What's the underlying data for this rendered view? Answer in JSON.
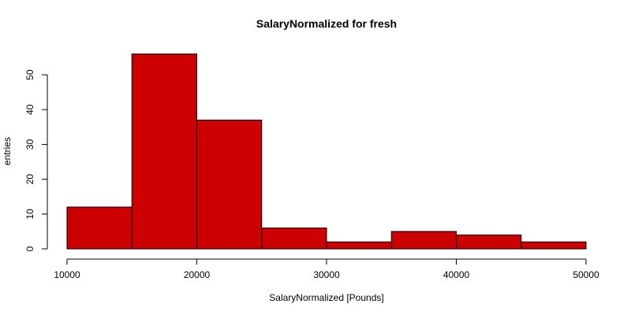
{
  "chart_data": {
    "type": "bar",
    "title": "SalaryNormalized for fresh",
    "xlabel": "SalaryNormalized [Pounds]",
    "ylabel": "entries",
    "bins": [
      {
        "from": 10000,
        "to": 15000,
        "count": 12
      },
      {
        "from": 15000,
        "to": 20000,
        "count": 56
      },
      {
        "from": 20000,
        "to": 25000,
        "count": 37
      },
      {
        "from": 25000,
        "to": 30000,
        "count": 6
      },
      {
        "from": 30000,
        "to": 35000,
        "count": 2
      },
      {
        "from": 35000,
        "to": 40000,
        "count": 5
      },
      {
        "from": 40000,
        "to": 45000,
        "count": 4
      },
      {
        "from": 45000,
        "to": 50000,
        "count": 2
      }
    ],
    "xlim": [
      10000,
      50000
    ],
    "ylim": [
      0,
      56
    ],
    "x_ticks": [
      "10000",
      "20000",
      "30000",
      "40000",
      "50000"
    ],
    "y_ticks": [
      "0",
      "10",
      "20",
      "30",
      "40",
      "50"
    ],
    "bar_color": "#cc0000",
    "grid": false
  }
}
